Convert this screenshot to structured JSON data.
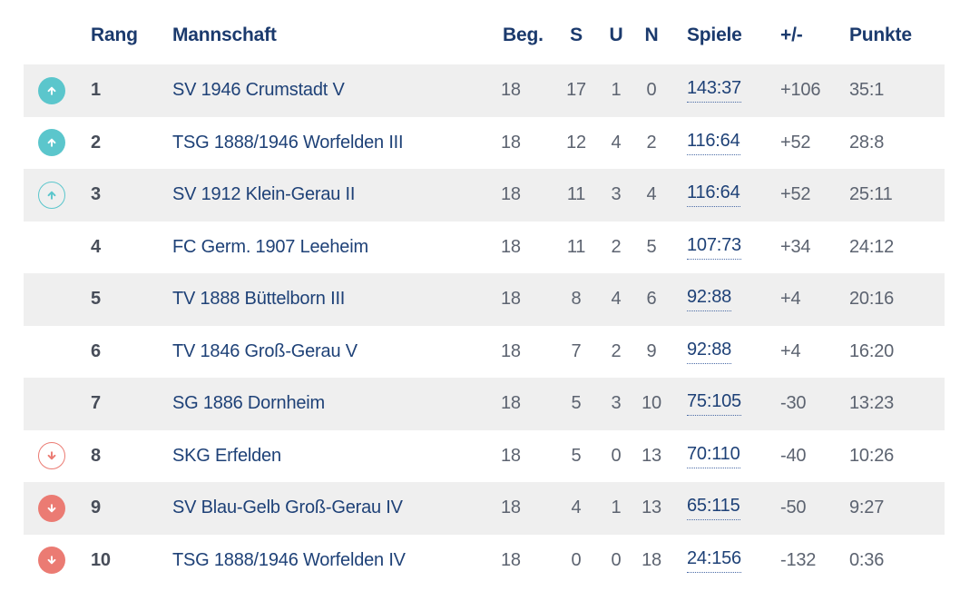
{
  "colors": {
    "header_text": "#1B3A6D",
    "team_link_text": "#1E4177",
    "muted_value_text": "#5C6370",
    "rank_text": "#474D59",
    "alt_row_bg": "#EFEFEF",
    "promotion_teal": "#5BC6CC",
    "relegation_salmon": "#EB7B73"
  },
  "table": {
    "headers": [
      "Rang",
      "Mannschaft",
      "Beg.",
      "S",
      "U",
      "N",
      "Spiele",
      "+/-",
      "Punkte"
    ],
    "rows": [
      {
        "movement": "up-filled",
        "rank": "1",
        "team": "SV 1946 Crumstadt V",
        "beg": "18",
        "s": "17",
        "u": "1",
        "n": "0",
        "spiele": "143:37",
        "diff": "+106",
        "punkte": "35:1"
      },
      {
        "movement": "up-filled",
        "rank": "2",
        "team": "TSG 1888/1946 Worfelden III",
        "beg": "18",
        "s": "12",
        "u": "4",
        "n": "2",
        "spiele": "116:64",
        "diff": "+52",
        "punkte": "28:8"
      },
      {
        "movement": "up-outline",
        "rank": "3",
        "team": "SV 1912 Klein-Gerau II",
        "beg": "18",
        "s": "11",
        "u": "3",
        "n": "4",
        "spiele": "116:64",
        "diff": "+52",
        "punkte": "25:11"
      },
      {
        "movement": "none",
        "rank": "4",
        "team": "FC Germ. 1907 Leeheim",
        "beg": "18",
        "s": "11",
        "u": "2",
        "n": "5",
        "spiele": "107:73",
        "diff": "+34",
        "punkte": "24:12"
      },
      {
        "movement": "none",
        "rank": "5",
        "team": "TV 1888 Büttelborn III",
        "beg": "18",
        "s": "8",
        "u": "4",
        "n": "6",
        "spiele": "92:88",
        "diff": "+4",
        "punkte": "20:16"
      },
      {
        "movement": "none",
        "rank": "6",
        "team": "TV 1846 Groß-Gerau V",
        "beg": "18",
        "s": "7",
        "u": "2",
        "n": "9",
        "spiele": "92:88",
        "diff": "+4",
        "punkte": "16:20"
      },
      {
        "movement": "none",
        "rank": "7",
        "team": "SG 1886 Dornheim",
        "beg": "18",
        "s": "5",
        "u": "3",
        "n": "10",
        "spiele": "75:105",
        "diff": "-30",
        "punkte": "13:23"
      },
      {
        "movement": "down-outline",
        "rank": "8",
        "team": "SKG Erfelden",
        "beg": "18",
        "s": "5",
        "u": "0",
        "n": "13",
        "spiele": "70:110",
        "diff": "-40",
        "punkte": "10:26"
      },
      {
        "movement": "down-filled",
        "rank": "9",
        "team": "SV Blau-Gelb Groß-Gerau IV",
        "beg": "18",
        "s": "4",
        "u": "1",
        "n": "13",
        "spiele": "65:115",
        "diff": "-50",
        "punkte": "9:27"
      },
      {
        "movement": "down-filled",
        "rank": "10",
        "team": "TSG 1888/1946 Worfelden IV",
        "beg": "18",
        "s": "0",
        "u": "0",
        "n": "18",
        "spiele": "24:156",
        "diff": "-132",
        "punkte": "0:36"
      }
    ]
  }
}
